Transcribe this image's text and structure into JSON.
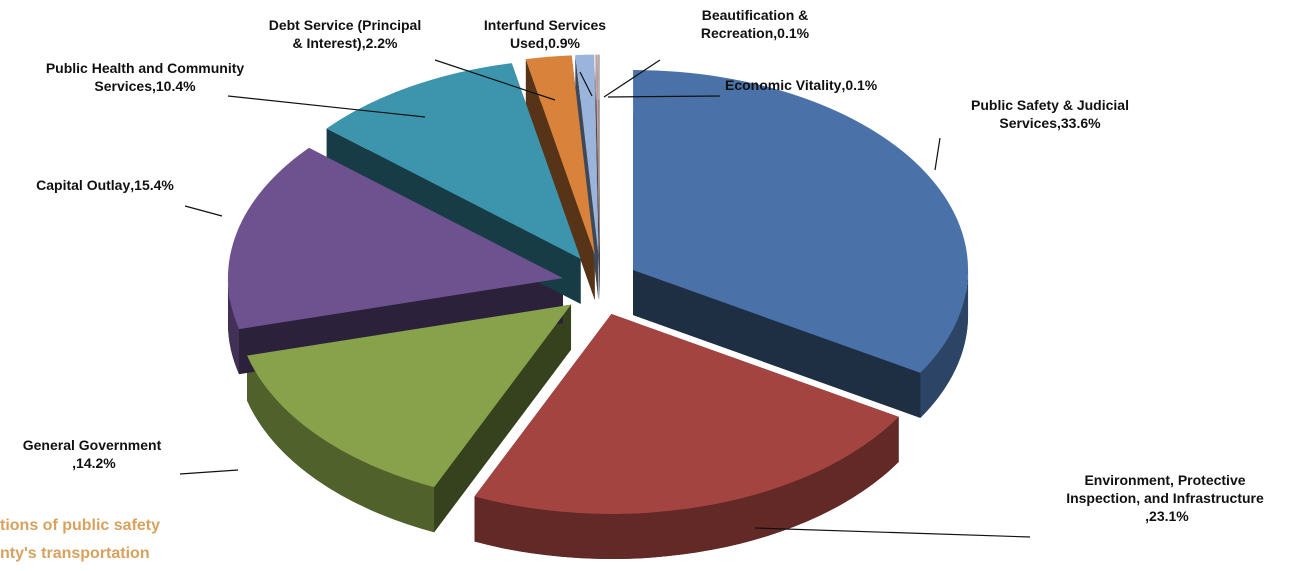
{
  "chart_data": {
    "type": "pie3d",
    "categories": [
      "Public Safety & Judicial Services",
      "Environment, Protective Inspection, and Infrastructure",
      "General Government",
      "Capital Outlay",
      "Public Health and Community Services",
      "Debt Service (Principal & Interest)",
      "Interfund Services Used",
      "Beautification & Recreation",
      "Economic Vitality"
    ],
    "values": [
      33.6,
      23.1,
      14.2,
      15.4,
      10.4,
      2.2,
      0.9,
      0.1,
      0.1
    ],
    "value_labels": [
      "33.6%",
      "23.1%",
      "14.2%",
      "15.4%",
      "10.4%",
      "2.2%",
      "0.9%",
      "0.1%",
      "0.1%"
    ],
    "colors": [
      "#4a72a8",
      "#a44441",
      "#87a24a",
      "#6e5290",
      "#3d95ad",
      "#d9823b",
      "#9bb4dc",
      "#c9a0a0",
      "#b0b0b0"
    ],
    "background_text": [
      "tions of public safety",
      "nty's  transportation"
    ]
  }
}
